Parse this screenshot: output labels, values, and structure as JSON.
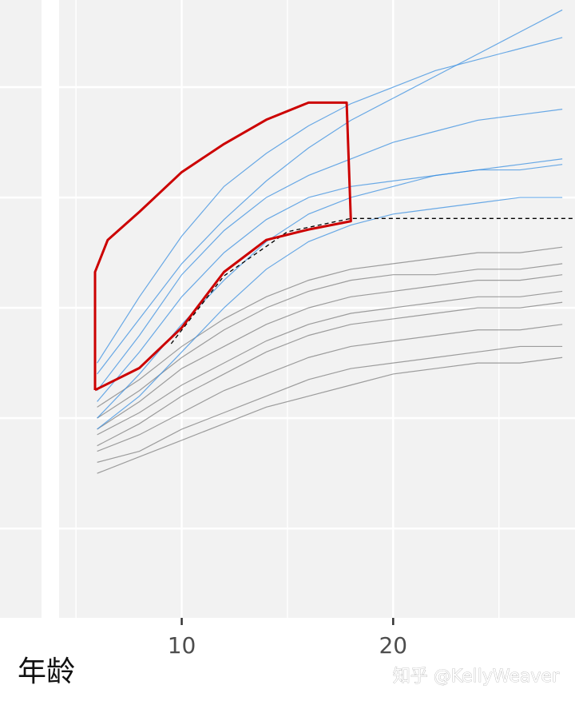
{
  "chart_data": {
    "type": "line",
    "x_label": "年龄",
    "watermark": "知乎 @KellyWeaver",
    "xlim": [
      4.2,
      28.6
    ],
    "ylim": [
      -6.2,
      105.8
    ],
    "xticks": [
      10,
      20
    ],
    "x_minor_grid": [
      5,
      15,
      25
    ],
    "y_grid": [
      10,
      30,
      50,
      70,
      90
    ],
    "grid": true,
    "x": [
      6,
      8,
      10,
      12,
      14,
      16,
      18,
      20,
      22,
      24,
      26,
      28
    ],
    "series": [
      {
        "color": "#7f7f7f",
        "values": [
          27,
          31,
          36,
          40,
          44,
          47,
          49,
          50,
          51,
          52,
          52,
          53
        ]
      },
      {
        "color": "#7f7f7f",
        "values": [
          24,
          27,
          31,
          35,
          38,
          41,
          43,
          44,
          45,
          46,
          46,
          47
        ]
      },
      {
        "color": "#7f7f7f",
        "values": [
          30,
          35,
          41,
          46,
          50,
          53,
          55,
          56,
          56,
          57,
          57,
          58
        ]
      },
      {
        "color": "#7f7f7f",
        "values": [
          22,
          24,
          28,
          31,
          34,
          37,
          39,
          40,
          41,
          42,
          43,
          43
        ]
      },
      {
        "color": "#7f7f7f",
        "values": [
          28,
          33,
          39,
          43,
          47,
          50,
          52,
          53,
          54,
          55,
          55,
          56
        ]
      },
      {
        "color": "#7f7f7f",
        "values": [
          25,
          29,
          34,
          38,
          42,
          45,
          47,
          48,
          49,
          50,
          50,
          51
        ]
      },
      {
        "color": "#7f7f7f",
        "values": [
          20,
          23,
          26,
          29,
          32,
          34,
          36,
          38,
          39,
          40,
          40,
          41
        ]
      },
      {
        "color": "#7f7f7f",
        "values": [
          32,
          37,
          43,
          48,
          52,
          55,
          57,
          58,
          59,
          60,
          60,
          61
        ]
      },
      {
        "color": "#3a8fe0",
        "values": [
          35,
          45,
          56,
          64,
          70,
          74,
          77,
          80,
          82,
          84,
          85,
          86
        ]
      },
      {
        "color": "#3a8fe0",
        "values": [
          30,
          38,
          47,
          55,
          62,
          67,
          70,
          72,
          74,
          75,
          76,
          77
        ]
      },
      {
        "color": "#3a8fe0",
        "values": [
          40,
          52,
          63,
          72,
          78,
          83,
          87,
          90,
          93,
          95,
          97,
          99
        ]
      },
      {
        "color": "#3a8fe0",
        "values": [
          28,
          34,
          42,
          50,
          57,
          62,
          65,
          67,
          68,
          69,
          70,
          70
        ]
      },
      {
        "color": "#3a8fe0",
        "values": [
          33,
          42,
          52,
          60,
          66,
          70,
          72,
          73,
          74,
          75,
          75,
          76
        ]
      },
      {
        "color": "#3a8fe0",
        "values": [
          38,
          48,
          58,
          66,
          73,
          79,
          84,
          88,
          92,
          96,
          100,
          104
        ]
      }
    ],
    "reference_line": {
      "color": "#000000",
      "x": [
        9.5,
        12,
        15,
        18,
        28.6
      ],
      "y": [
        43.5,
        55.8,
        63.8,
        66.2,
        66.2
      ]
    },
    "highlight_region": {
      "color": "#cc0000",
      "x": [
        5.9,
        5.9,
        6.5,
        8,
        10,
        12,
        14,
        16,
        17.8,
        18,
        16,
        14,
        12,
        10,
        8,
        5.9
      ],
      "y": [
        35.1,
        56.5,
        62.3,
        67.4,
        74.6,
        79.7,
        84.1,
        87.2,
        87.2,
        65.7,
        64.2,
        62.3,
        56.5,
        46.4,
        39.1,
        35.1
      ]
    }
  }
}
